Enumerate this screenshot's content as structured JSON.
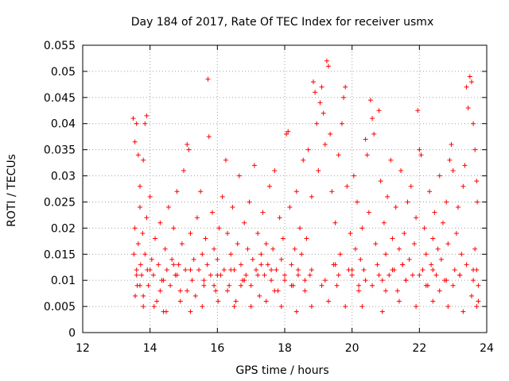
{
  "chart_data": {
    "type": "scatter",
    "title": "Day 184 of 2017, Rate Of TEC Index for receiver usmx",
    "xlabel": "GPS time / hours",
    "ylabel": "ROTI / TECUs",
    "xlim": [
      12,
      24
    ],
    "ylim": [
      0,
      0.055
    ],
    "xticks": [
      12,
      14,
      16,
      18,
      20,
      22,
      24
    ],
    "xtick_labels": [
      "12",
      "14",
      "16",
      "18",
      "20",
      "22",
      "24"
    ],
    "yticks": [
      0,
      0.005,
      0.01,
      0.015,
      0.02,
      0.025,
      0.03,
      0.035,
      0.04,
      0.045,
      0.05,
      0.055
    ],
    "ytick_labels": [
      "0",
      "0.005",
      "0.01",
      "0.015",
      "0.02",
      "0.025",
      "0.03",
      "0.035",
      "0.04",
      "0.045",
      "0.05",
      "0.055"
    ],
    "grid": true,
    "marker": "+",
    "color": "#ff0000",
    "points": [
      [
        13.5,
        0.041
      ],
      [
        13.55,
        0.0365
      ],
      [
        13.6,
        0.04
      ],
      [
        13.65,
        0.034
      ],
      [
        13.7,
        0.028
      ],
      [
        13.8,
        0.033
      ],
      [
        13.85,
        0.04
      ],
      [
        13.9,
        0.0415
      ],
      [
        13.52,
        0.015
      ],
      [
        13.55,
        0.02
      ],
      [
        13.6,
        0.012
      ],
      [
        13.62,
        0.009
      ],
      [
        13.65,
        0.017
      ],
      [
        13.7,
        0.024
      ],
      [
        13.72,
        0.013
      ],
      [
        13.75,
        0.011
      ],
      [
        13.78,
        0.019
      ],
      [
        13.8,
        0.007
      ],
      [
        13.85,
        0.015
      ],
      [
        13.9,
        0.022
      ],
      [
        13.92,
        0.012
      ],
      [
        13.95,
        0.009
      ],
      [
        14.0,
        0.026
      ],
      [
        14.05,
        0.014
      ],
      [
        14.1,
        0.011
      ],
      [
        14.15,
        0.018
      ],
      [
        14.2,
        0.006
      ],
      [
        14.25,
        0.013
      ],
      [
        14.3,
        0.021
      ],
      [
        14.35,
        0.01
      ],
      [
        14.4,
        0.004
      ],
      [
        14.45,
        0.016
      ],
      [
        14.5,
        0.012
      ],
      [
        14.55,
        0.024
      ],
      [
        14.6,
        0.009
      ],
      [
        14.65,
        0.014
      ],
      [
        14.7,
        0.02
      ],
      [
        14.75,
        0.011
      ],
      [
        14.8,
        0.027
      ],
      [
        14.85,
        0.013
      ],
      [
        14.9,
        0.008
      ],
      [
        14.95,
        0.017
      ],
      [
        15.0,
        0.031
      ],
      [
        15.05,
        0.012
      ],
      [
        15.1,
        0.036
      ],
      [
        15.15,
        0.035
      ],
      [
        15.2,
        0.019
      ],
      [
        15.25,
        0.01
      ],
      [
        15.3,
        0.014
      ],
      [
        15.35,
        0.007
      ],
      [
        15.4,
        0.022
      ],
      [
        15.45,
        0.012
      ],
      [
        15.5,
        0.027
      ],
      [
        15.55,
        0.015
      ],
      [
        15.6,
        0.009
      ],
      [
        15.65,
        0.018
      ],
      [
        15.7,
        0.013
      ],
      [
        15.72,
        0.0485
      ],
      [
        15.75,
        0.0375
      ],
      [
        15.8,
        0.011
      ],
      [
        15.85,
        0.023
      ],
      [
        15.9,
        0.016
      ],
      [
        15.95,
        0.008
      ],
      [
        16.0,
        0.014
      ],
      [
        16.05,
        0.02
      ],
      [
        16.1,
        0.011
      ],
      [
        16.15,
        0.026
      ],
      [
        16.2,
        0.012
      ],
      [
        16.25,
        0.033
      ],
      [
        16.3,
        0.019
      ],
      [
        16.35,
        0.009
      ],
      [
        16.4,
        0.015
      ],
      [
        16.45,
        0.024
      ],
      [
        16.5,
        0.012
      ],
      [
        16.55,
        0.006
      ],
      [
        16.6,
        0.017
      ],
      [
        16.65,
        0.03
      ],
      [
        16.7,
        0.013
      ],
      [
        16.75,
        0.01
      ],
      [
        16.8,
        0.021
      ],
      [
        16.85,
        0.011
      ],
      [
        16.9,
        0.016
      ],
      [
        16.95,
        0.025
      ],
      [
        17.0,
        0.009
      ],
      [
        17.05,
        0.014
      ],
      [
        17.1,
        0.032
      ],
      [
        17.15,
        0.012
      ],
      [
        17.2,
        0.019
      ],
      [
        17.25,
        0.007
      ],
      [
        17.3,
        0.015
      ],
      [
        17.35,
        0.023
      ],
      [
        17.4,
        0.011
      ],
      [
        17.45,
        0.017
      ],
      [
        17.5,
        0.013
      ],
      [
        17.55,
        0.028
      ],
      [
        17.6,
        0.01
      ],
      [
        17.65,
        0.016
      ],
      [
        17.7,
        0.031
      ],
      [
        17.75,
        0.012
      ],
      [
        17.8,
        0.008
      ],
      [
        17.85,
        0.022
      ],
      [
        17.9,
        0.014
      ],
      [
        17.95,
        0.018
      ],
      [
        18.0,
        0.011
      ],
      [
        18.05,
        0.038
      ],
      [
        18.1,
        0.0385
      ],
      [
        18.15,
        0.024
      ],
      [
        18.2,
        0.013
      ],
      [
        18.25,
        0.009
      ],
      [
        18.3,
        0.016
      ],
      [
        18.35,
        0.027
      ],
      [
        18.4,
        0.012
      ],
      [
        18.45,
        0.02
      ],
      [
        18.5,
        0.015
      ],
      [
        18.55,
        0.033
      ],
      [
        18.6,
        0.01
      ],
      [
        18.65,
        0.018
      ],
      [
        18.7,
        0.035
      ],
      [
        18.75,
        0.011
      ],
      [
        18.8,
        0.026
      ],
      [
        18.85,
        0.048
      ],
      [
        18.9,
        0.046
      ],
      [
        18.95,
        0.04
      ],
      [
        19.0,
        0.031
      ],
      [
        19.05,
        0.044
      ],
      [
        19.1,
        0.047
      ],
      [
        19.15,
        0.042
      ],
      [
        19.2,
        0.036
      ],
      [
        19.25,
        0.052
      ],
      [
        19.3,
        0.051
      ],
      [
        19.35,
        0.038
      ],
      [
        19.4,
        0.027
      ],
      [
        19.45,
        0.013
      ],
      [
        19.5,
        0.021
      ],
      [
        19.55,
        0.009
      ],
      [
        19.6,
        0.034
      ],
      [
        19.65,
        0.015
      ],
      [
        19.7,
        0.04
      ],
      [
        19.75,
        0.045
      ],
      [
        19.8,
        0.047
      ],
      [
        19.85,
        0.028
      ],
      [
        19.9,
        0.012
      ],
      [
        19.95,
        0.019
      ],
      [
        20.0,
        0.011
      ],
      [
        20.05,
        0.03
      ],
      [
        20.1,
        0.016
      ],
      [
        20.15,
        0.025
      ],
      [
        20.2,
        0.009
      ],
      [
        20.25,
        0.014
      ],
      [
        20.3,
        0.02
      ],
      [
        20.35,
        0.012
      ],
      [
        20.4,
        0.037
      ],
      [
        20.45,
        0.034
      ],
      [
        20.5,
        0.023
      ],
      [
        20.55,
        0.0445
      ],
      [
        20.6,
        0.041
      ],
      [
        20.65,
        0.038
      ],
      [
        20.7,
        0.017
      ],
      [
        20.75,
        0.013
      ],
      [
        20.8,
        0.0425
      ],
      [
        20.85,
        0.029
      ],
      [
        20.9,
        0.01
      ],
      [
        20.95,
        0.021
      ],
      [
        21.0,
        0.015
      ],
      [
        21.05,
        0.026
      ],
      [
        21.1,
        0.011
      ],
      [
        21.15,
        0.033
      ],
      [
        21.2,
        0.018
      ],
      [
        21.25,
        0.012
      ],
      [
        21.3,
        0.024
      ],
      [
        21.35,
        0.008
      ],
      [
        21.4,
        0.016
      ],
      [
        21.45,
        0.031
      ],
      [
        21.5,
        0.013
      ],
      [
        21.55,
        0.019
      ],
      [
        21.6,
        0.01
      ],
      [
        21.65,
        0.025
      ],
      [
        21.7,
        0.014
      ],
      [
        21.75,
        0.028
      ],
      [
        21.8,
        0.011
      ],
      [
        21.85,
        0.017
      ],
      [
        21.9,
        0.022
      ],
      [
        21.95,
        0.0425
      ],
      [
        22.0,
        0.035
      ],
      [
        22.05,
        0.034
      ],
      [
        22.1,
        0.012
      ],
      [
        22.15,
        0.02
      ],
      [
        22.2,
        0.015
      ],
      [
        22.25,
        0.009
      ],
      [
        22.3,
        0.027
      ],
      [
        22.35,
        0.013
      ],
      [
        22.4,
        0.018
      ],
      [
        22.45,
        0.023
      ],
      [
        22.5,
        0.011
      ],
      [
        22.55,
        0.016
      ],
      [
        22.6,
        0.03
      ],
      [
        22.65,
        0.014
      ],
      [
        22.7,
        0.021
      ],
      [
        22.75,
        0.01
      ],
      [
        22.8,
        0.025
      ],
      [
        22.85,
        0.017
      ],
      [
        22.9,
        0.033
      ],
      [
        22.95,
        0.036
      ],
      [
        23.0,
        0.031
      ],
      [
        23.05,
        0.012
      ],
      [
        23.1,
        0.019
      ],
      [
        23.15,
        0.024
      ],
      [
        23.2,
        0.011
      ],
      [
        23.25,
        0.015
      ],
      [
        23.3,
        0.028
      ],
      [
        23.35,
        0.032
      ],
      [
        23.4,
        0.047
      ],
      [
        23.45,
        0.043
      ],
      [
        23.5,
        0.049
      ],
      [
        23.55,
        0.048
      ],
      [
        23.6,
        0.04
      ],
      [
        23.65,
        0.035
      ],
      [
        23.7,
        0.029
      ],
      [
        23.72,
        0.025
      ],
      [
        23.75,
        0.009
      ],
      [
        23.75,
        0.006
      ],
      [
        23.7,
        0.012
      ],
      [
        23.65,
        0.016
      ],
      [
        23.6,
        0.01
      ],
      [
        13.56,
        0.007
      ],
      [
        13.8,
        0.005
      ],
      [
        14.12,
        0.005
      ],
      [
        14.48,
        0.004
      ],
      [
        14.9,
        0.006
      ],
      [
        15.2,
        0.004
      ],
      [
        15.55,
        0.005
      ],
      [
        16.02,
        0.006
      ],
      [
        16.5,
        0.005
      ],
      [
        17.0,
        0.005
      ],
      [
        17.45,
        0.006
      ],
      [
        17.9,
        0.005
      ],
      [
        18.35,
        0.004
      ],
      [
        18.8,
        0.005
      ],
      [
        19.3,
        0.006
      ],
      [
        19.8,
        0.005
      ],
      [
        20.3,
        0.005
      ],
      [
        20.9,
        0.004
      ],
      [
        21.4,
        0.006
      ],
      [
        21.9,
        0.005
      ],
      [
        22.4,
        0.006
      ],
      [
        22.85,
        0.005
      ],
      [
        23.3,
        0.004
      ],
      [
        23.7,
        0.005
      ],
      [
        13.6,
        0.011
      ],
      [
        14.0,
        0.012
      ],
      [
        14.4,
        0.01
      ],
      [
        14.8,
        0.011
      ],
      [
        15.2,
        0.012
      ],
      [
        15.6,
        0.01
      ],
      [
        16.0,
        0.011
      ],
      [
        16.4,
        0.012
      ],
      [
        16.8,
        0.01
      ],
      [
        17.2,
        0.011
      ],
      [
        17.6,
        0.012
      ],
      [
        18.0,
        0.01
      ],
      [
        18.4,
        0.011
      ],
      [
        18.8,
        0.012
      ],
      [
        19.2,
        0.01
      ],
      [
        19.6,
        0.011
      ],
      [
        20.0,
        0.012
      ],
      [
        20.4,
        0.01
      ],
      [
        20.8,
        0.011
      ],
      [
        21.2,
        0.012
      ],
      [
        21.6,
        0.01
      ],
      [
        22.0,
        0.011
      ],
      [
        22.4,
        0.012
      ],
      [
        22.8,
        0.01
      ],
      [
        23.2,
        0.011
      ],
      [
        23.6,
        0.012
      ],
      [
        13.7,
        0.009
      ],
      [
        14.3,
        0.008
      ],
      [
        14.7,
        0.013
      ],
      [
        15.1,
        0.008
      ],
      [
        15.9,
        0.009
      ],
      [
        16.3,
        0.008
      ],
      [
        16.7,
        0.009
      ],
      [
        17.3,
        0.013
      ],
      [
        17.7,
        0.008
      ],
      [
        18.2,
        0.009
      ],
      [
        18.6,
        0.008
      ],
      [
        19.1,
        0.009
      ],
      [
        19.5,
        0.013
      ],
      [
        20.2,
        0.008
      ],
      [
        20.6,
        0.009
      ],
      [
        21.0,
        0.008
      ],
      [
        21.5,
        0.013
      ],
      [
        22.2,
        0.009
      ],
      [
        22.6,
        0.008
      ],
      [
        23.0,
        0.009
      ],
      [
        23.4,
        0.013
      ],
      [
        23.55,
        0.007
      ]
    ]
  }
}
